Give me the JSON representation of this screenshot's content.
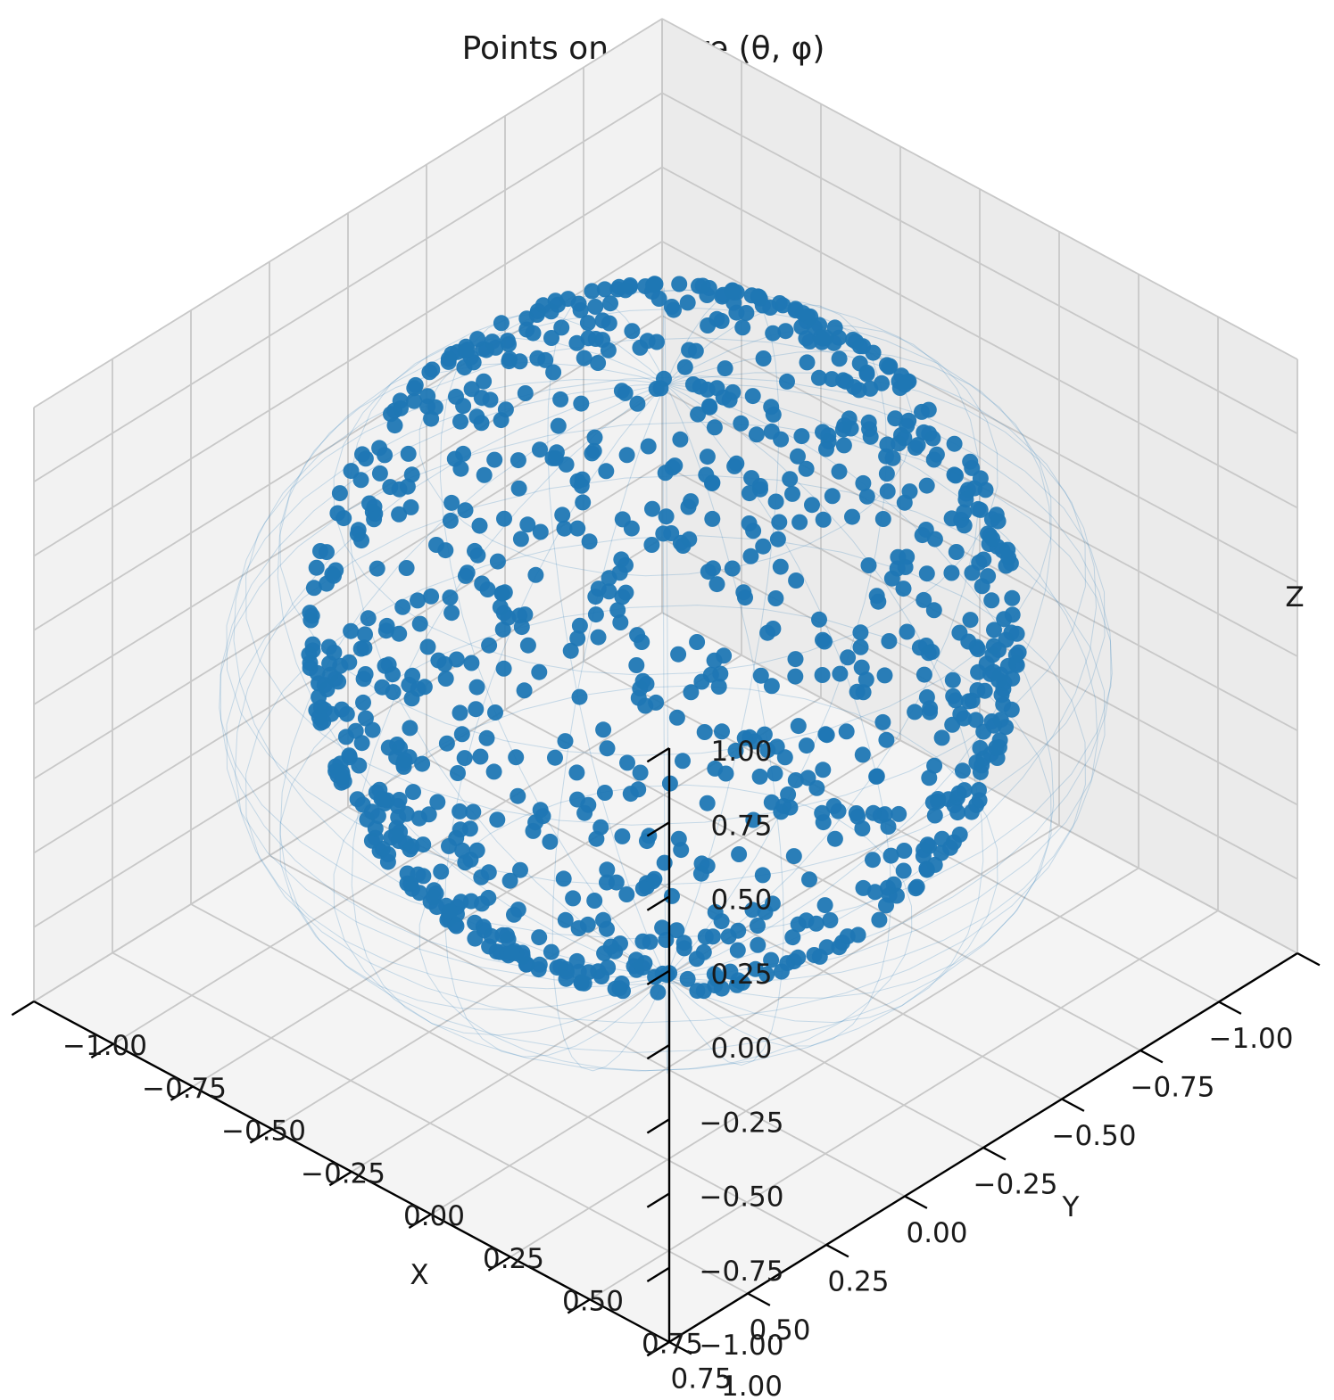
{
  "chart_data": {
    "type": "scatter",
    "projection": "3d",
    "title": "Points on sphere (θ, φ)",
    "xlabel": "X",
    "ylabel": "Y",
    "zlabel": "Z",
    "xlim": [
      -1.0,
      1.0
    ],
    "ylim": [
      -1.0,
      1.0
    ],
    "zlim": [
      -1.0,
      1.0
    ],
    "xticks": [
      "−1.00",
      "−0.75",
      "−0.50",
      "−0.25",
      "0.00",
      "0.25",
      "0.50",
      "0.75",
      "1.00"
    ],
    "yticks": [
      "−1.00",
      "−0.75",
      "−0.50",
      "−0.25",
      "0.00",
      "0.25",
      "0.50",
      "0.75",
      "1.00"
    ],
    "zticks": [
      "−1.00",
      "−0.75",
      "−0.50",
      "−0.25",
      "0.00",
      "0.25",
      "0.50",
      "0.75",
      "1.00"
    ],
    "grid": true,
    "marker_color": "#1f77b4",
    "wireframe_color": "#1f77b4",
    "series": [
      {
        "shape": "unit sphere surface",
        "point_count": 1000,
        "sample_points": [
          [
            0.71,
            -0.19,
            0.68
          ],
          [
            -0.35,
            0.81,
            0.47
          ],
          [
            0.12,
            0.55,
            -0.83
          ],
          [
            -0.88,
            -0.21,
            0.42
          ],
          [
            0.44,
            0.63,
            0.64
          ],
          [
            -0.52,
            -0.74,
            -0.42
          ],
          [
            0.93,
            0.28,
            -0.23
          ],
          [
            -0.08,
            -0.97,
            0.21
          ],
          [
            0.26,
            -0.48,
            -0.84
          ],
          [
            -0.69,
            0.33,
            -0.64
          ],
          [
            0.58,
            -0.79,
            0.19
          ],
          [
            -0.17,
            0.09,
            0.98
          ],
          [
            0.81,
            0.51,
            0.29
          ],
          [
            -0.95,
            0.12,
            -0.29
          ],
          [
            0.04,
            0.89,
            0.45
          ],
          [
            -0.41,
            -0.36,
            0.84
          ],
          [
            0.66,
            0.13,
            -0.74
          ],
          [
            -0.22,
            -0.64,
            -0.74
          ],
          [
            0.37,
            0.92,
            -0.14
          ],
          [
            -0.74,
            0.61,
            0.28
          ]
        ]
      }
    ]
  }
}
